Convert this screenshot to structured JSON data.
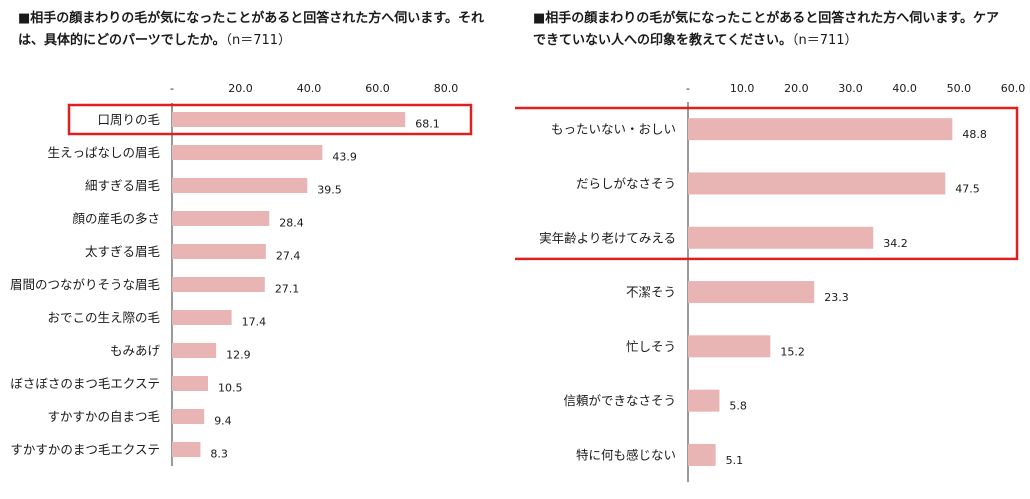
{
  "colors": {
    "bar": "#e8b4b4",
    "highlight": "#e02020",
    "axis": "#333333"
  },
  "left": {
    "title": "■相手の顔まわりの毛が気になったことがあると回答された方へ伺います。それは、具体的にどのパーツでしたか。",
    "sample": "（n＝711）"
  },
  "right": {
    "title": "■相手の顔まわりの毛が気になったことがあると回答された方へ伺います。ケアできていない人への印象を教えてください。",
    "sample": "（n＝711）"
  },
  "chart_data": [
    {
      "type": "bar",
      "orientation": "horizontal",
      "title": "■相手の顔まわりの毛が気になったことがあると回答された方へ伺います。それは、具体的にどのパーツでしたか。（n＝711）",
      "categories": [
        "口周りの毛",
        "生えっぱなしの眉毛",
        "細すぎる眉毛",
        "顔の産毛の多さ",
        "太すぎる眉毛",
        "眉間のつながりそうな眉毛",
        "おでこの生え際の毛",
        "もみあげ",
        "ぼさぼさのまつ毛エクステ",
        "すかすかの自まつ毛",
        "すかすかのまつ毛エクステ"
      ],
      "values": [
        68.1,
        43.9,
        39.5,
        28.4,
        27.4,
        27.1,
        17.4,
        12.9,
        10.5,
        9.4,
        8.3
      ],
      "value_labels": [
        "68.1",
        "43.9",
        "39.5",
        "28.4",
        "27.4",
        "27.1",
        "17.4",
        "12.9",
        "10.5",
        "9.4",
        "8.3"
      ],
      "xlim": [
        0,
        80
      ],
      "ticks": [
        "-",
        "20.0",
        "40.0",
        "60.0",
        "80.0"
      ],
      "axis_position": "top",
      "grid": false,
      "highlighted": [
        "口周りの毛"
      ]
    },
    {
      "type": "bar",
      "orientation": "horizontal",
      "title": "■相手の顔まわりの毛が気になったことがあると回答された方へ伺います。ケアできていない人への印象を教えてください。（n＝711）",
      "categories": [
        "もったいない・おしい",
        "だらしがなさそう",
        "実年齢より老けてみえる",
        "不潔そう",
        "忙しそう",
        "信頼ができなさそう",
        "特に何も感じない"
      ],
      "values": [
        48.8,
        47.5,
        34.2,
        23.3,
        15.2,
        5.8,
        5.1
      ],
      "value_labels": [
        "48.8",
        "47.5",
        "34.2",
        "23.3",
        "15.2",
        "5.8",
        "5.1"
      ],
      "xlim": [
        0,
        60
      ],
      "ticks": [
        "-",
        "10.0",
        "20.0",
        "30.0",
        "40.0",
        "50.0",
        "60.0"
      ],
      "axis_position": "top",
      "grid": false,
      "highlighted": [
        "もったいない・おしい",
        "だらしがなさそう",
        "実年齢より老けてみえる"
      ]
    }
  ]
}
